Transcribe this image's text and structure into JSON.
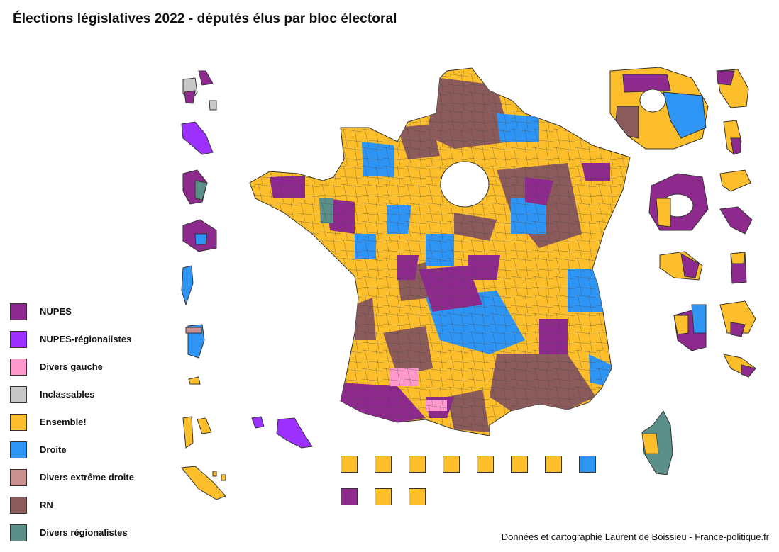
{
  "title": "Élections législatives 2022 - députés élus par bloc électoral",
  "credit": "Données et cartographie Laurent de Boissieu - France-politique.fr",
  "legend": [
    {
      "label": "NUPES",
      "color": "#8e2a8e"
    },
    {
      "label": "NUPES-régionalistes",
      "color": "#9b30ff"
    },
    {
      "label": "Divers gauche",
      "color": "#ff99cc"
    },
    {
      "label": "Inclassables",
      "color": "#c8c8c8"
    },
    {
      "label": "Ensemble!",
      "color": "#fcbf2b"
    },
    {
      "label": "Droite",
      "color": "#2f95f5"
    },
    {
      "label": "Divers extrême droite",
      "color": "#c89090"
    },
    {
      "label": "RN",
      "color": "#8b5a5a"
    },
    {
      "label": "Divers régionalistes",
      "color": "#5a8f8a"
    }
  ],
  "abroad_boxes": [
    {
      "row": 0,
      "bloc": "Ensemble!",
      "color": "#fcbf2b"
    },
    {
      "row": 0,
      "bloc": "Ensemble!",
      "color": "#fcbf2b"
    },
    {
      "row": 0,
      "bloc": "Ensemble!",
      "color": "#fcbf2b"
    },
    {
      "row": 0,
      "bloc": "Ensemble!",
      "color": "#fcbf2b"
    },
    {
      "row": 0,
      "bloc": "Ensemble!",
      "color": "#fcbf2b"
    },
    {
      "row": 0,
      "bloc": "Ensemble!",
      "color": "#fcbf2b"
    },
    {
      "row": 0,
      "bloc": "Ensemble!",
      "color": "#fcbf2b"
    },
    {
      "row": 0,
      "bloc": "Droite",
      "color": "#2f95f5"
    },
    {
      "row": 1,
      "bloc": "NUPES",
      "color": "#8e2a8e"
    },
    {
      "row": 1,
      "bloc": "Ensemble!",
      "color": "#fcbf2b"
    },
    {
      "row": 1,
      "bloc": "Ensemble!",
      "color": "#fcbf2b"
    }
  ]
}
